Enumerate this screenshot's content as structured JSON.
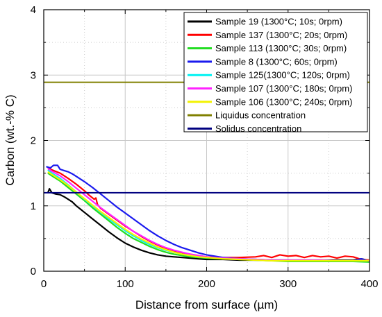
{
  "chart_data": {
    "type": "line",
    "xlabel": "Distance from surface (µm)",
    "ylabel": "Carbon (wt.-% C)",
    "xlim": [
      0,
      400
    ],
    "ylim": [
      0,
      4
    ],
    "x_ticks": [
      "0",
      "100",
      "200",
      "300",
      "400"
    ],
    "y_ticks": [
      "0",
      "1",
      "2",
      "3",
      "4"
    ],
    "grid": true,
    "legend_position": "top-right",
    "series": [
      {
        "name": "Sample 19 (1300°C; 10s; 0rpm)",
        "color": "#000000",
        "x": [
          5,
          7,
          10,
          15,
          20,
          25,
          30,
          35,
          40,
          45,
          50,
          60,
          70,
          80,
          90,
          100,
          110,
          120,
          130,
          140,
          150,
          160,
          170,
          180,
          190,
          200,
          220,
          240,
          260,
          280,
          300,
          320,
          340,
          360,
          380,
          390,
          400
        ],
        "y": [
          1.2,
          1.26,
          1.2,
          1.18,
          1.17,
          1.14,
          1.1,
          1.06,
          1.0,
          0.95,
          0.9,
          0.8,
          0.7,
          0.6,
          0.51,
          0.43,
          0.37,
          0.32,
          0.28,
          0.25,
          0.23,
          0.22,
          0.21,
          0.2,
          0.19,
          0.18,
          0.18,
          0.17,
          0.17,
          0.17,
          0.17,
          0.17,
          0.17,
          0.17,
          0.17,
          0.19,
          0.16
        ]
      },
      {
        "name": "Sample 137 (1300°C; 20s; 0rpm)",
        "color": "#ff0000",
        "x": [
          5,
          10,
          20,
          30,
          40,
          50,
          55,
          60,
          62,
          64,
          66,
          70,
          80,
          90,
          100,
          110,
          120,
          130,
          140,
          150,
          160,
          170,
          180,
          190,
          200,
          220,
          240,
          260,
          270,
          280,
          290,
          300,
          310,
          320,
          330,
          340,
          350,
          360,
          370,
          380,
          390,
          400
        ],
        "y": [
          1.58,
          1.55,
          1.5,
          1.42,
          1.33,
          1.23,
          1.17,
          1.12,
          1.1,
          1.12,
          1.02,
          0.96,
          0.87,
          0.78,
          0.69,
          0.61,
          0.53,
          0.46,
          0.4,
          0.35,
          0.31,
          0.28,
          0.26,
          0.24,
          0.22,
          0.21,
          0.21,
          0.22,
          0.24,
          0.21,
          0.25,
          0.23,
          0.24,
          0.21,
          0.24,
          0.22,
          0.23,
          0.2,
          0.23,
          0.22,
          0.18,
          0.17
        ]
      },
      {
        "name": "Sample 113 (1300°C; 30s; 0rpm)",
        "color": "#22dd22",
        "x": [
          5,
          10,
          20,
          30,
          40,
          50,
          60,
          70,
          80,
          90,
          100,
          110,
          120,
          130,
          140,
          150,
          160,
          170,
          180,
          190,
          200,
          220,
          240,
          260,
          280,
          300,
          320,
          340,
          360,
          380,
          400
        ],
        "y": [
          1.5,
          1.46,
          1.38,
          1.28,
          1.18,
          1.08,
          0.97,
          0.87,
          0.77,
          0.67,
          0.58,
          0.5,
          0.44,
          0.38,
          0.33,
          0.29,
          0.26,
          0.24,
          0.22,
          0.21,
          0.2,
          0.19,
          0.18,
          0.17,
          0.16,
          0.15,
          0.15,
          0.15,
          0.15,
          0.15,
          0.14
        ]
      },
      {
        "name": "Sample 8 (1300°C; 60s; 0rpm)",
        "color": "#1a1aee",
        "x": [
          3,
          8,
          12,
          17,
          20,
          25,
          30,
          35,
          40,
          50,
          60,
          70,
          80,
          90,
          100,
          110,
          120,
          130,
          140,
          150,
          160,
          170,
          180,
          190,
          200,
          210,
          220,
          240,
          260,
          280,
          300,
          320,
          340,
          360,
          380,
          390,
          400
        ],
        "y": [
          1.6,
          1.58,
          1.62,
          1.62,
          1.56,
          1.54,
          1.52,
          1.49,
          1.45,
          1.37,
          1.28,
          1.18,
          1.08,
          0.98,
          0.89,
          0.8,
          0.71,
          0.62,
          0.54,
          0.47,
          0.41,
          0.36,
          0.32,
          0.28,
          0.25,
          0.23,
          0.21,
          0.19,
          0.18,
          0.17,
          0.17,
          0.16,
          0.16,
          0.16,
          0.16,
          0.19,
          0.15
        ]
      },
      {
        "name": "Sample 125(1300°C; 120s; 0rpm)",
        "color": "#00f2f2",
        "x": [
          5,
          10,
          20,
          30,
          40,
          50,
          60,
          70,
          80,
          90,
          100,
          110,
          120,
          130,
          140,
          150,
          160,
          170,
          180,
          190,
          200,
          220,
          240,
          260,
          280,
          300,
          320,
          340,
          360,
          380,
          400
        ],
        "y": [
          1.55,
          1.5,
          1.42,
          1.32,
          1.21,
          1.1,
          1.0,
          0.9,
          0.8,
          0.71,
          0.62,
          0.54,
          0.47,
          0.41,
          0.36,
          0.32,
          0.29,
          0.26,
          0.24,
          0.22,
          0.21,
          0.2,
          0.19,
          0.18,
          0.17,
          0.17,
          0.17,
          0.17,
          0.16,
          0.16,
          0.16
        ]
      },
      {
        "name": "Sample 107 (1300°C; 180s; 0rpm)",
        "color": "#ff22ff",
        "x": [
          5,
          10,
          20,
          30,
          40,
          50,
          60,
          70,
          80,
          90,
          100,
          110,
          120,
          130,
          140,
          150,
          160,
          170,
          180,
          190,
          200,
          220,
          240,
          260,
          280,
          300,
          320,
          340,
          360,
          380,
          400
        ],
        "y": [
          1.57,
          1.53,
          1.46,
          1.37,
          1.27,
          1.17,
          1.07,
          0.97,
          0.88,
          0.79,
          0.7,
          0.61,
          0.54,
          0.47,
          0.41,
          0.36,
          0.32,
          0.29,
          0.26,
          0.24,
          0.22,
          0.2,
          0.19,
          0.18,
          0.17,
          0.17,
          0.17,
          0.17,
          0.16,
          0.16,
          0.16
        ]
      },
      {
        "name": "Sample 106 (1300°C; 240s; 0rpm)",
        "color": "#f2f200",
        "x": [
          5,
          10,
          20,
          30,
          40,
          50,
          60,
          70,
          80,
          90,
          100,
          110,
          120,
          130,
          140,
          150,
          160,
          170,
          180,
          190,
          200,
          220,
          240,
          260,
          280,
          300,
          320,
          340,
          360,
          380,
          400
        ],
        "y": [
          1.52,
          1.48,
          1.4,
          1.31,
          1.21,
          1.11,
          1.01,
          0.91,
          0.82,
          0.73,
          0.64,
          0.56,
          0.49,
          0.43,
          0.37,
          0.33,
          0.29,
          0.26,
          0.24,
          0.22,
          0.21,
          0.19,
          0.18,
          0.17,
          0.16,
          0.16,
          0.16,
          0.16,
          0.16,
          0.16,
          0.16
        ]
      },
      {
        "name": "Liquidus concentration",
        "color": "#808000",
        "x": [
          0,
          400
        ],
        "y": [
          2.89,
          2.89
        ]
      },
      {
        "name": "Solidus concentration",
        "color": "#000080",
        "x": [
          0,
          400
        ],
        "y": [
          1.2,
          1.2
        ]
      }
    ]
  }
}
